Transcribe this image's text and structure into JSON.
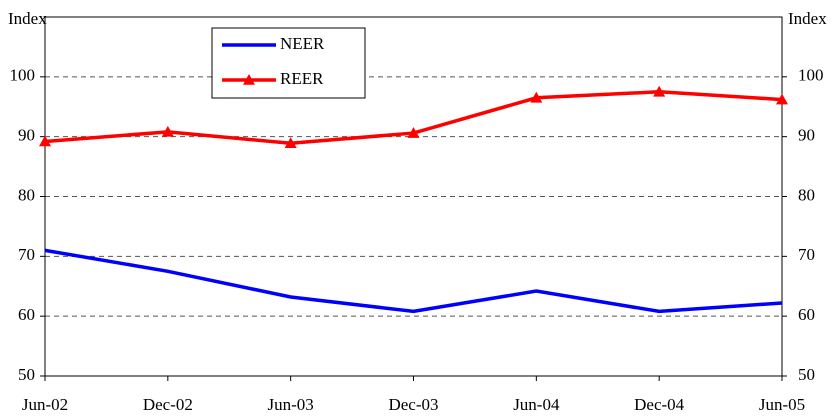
{
  "chart_data": {
    "type": "line",
    "y_label": "Index",
    "y2_label": "Index",
    "categories": [
      "Jun-02",
      "Dec-02",
      "Jun-03",
      "Dec-03",
      "Jun-04",
      "Dec-04",
      "Jun-05"
    ],
    "series": [
      {
        "name": "NEER",
        "color": "#0000ff",
        "values": [
          71,
          67.5,
          63.2,
          60.8,
          64.2,
          60.8,
          62.2
        ]
      },
      {
        "name": "REER",
        "color": "#ff0000",
        "marker": "triangle",
        "values": [
          89.2,
          90.8,
          88.9,
          90.6,
          96.5,
          97.5,
          96.2
        ]
      }
    ],
    "ylim": [
      50,
      110
    ],
    "yticks": [
      50,
      60,
      70,
      80,
      90,
      100
    ],
    "y2lim": [
      50,
      110
    ],
    "y2ticks": [
      50,
      60,
      70,
      80,
      90,
      100
    ],
    "grid": true,
    "legend": "top-left"
  }
}
